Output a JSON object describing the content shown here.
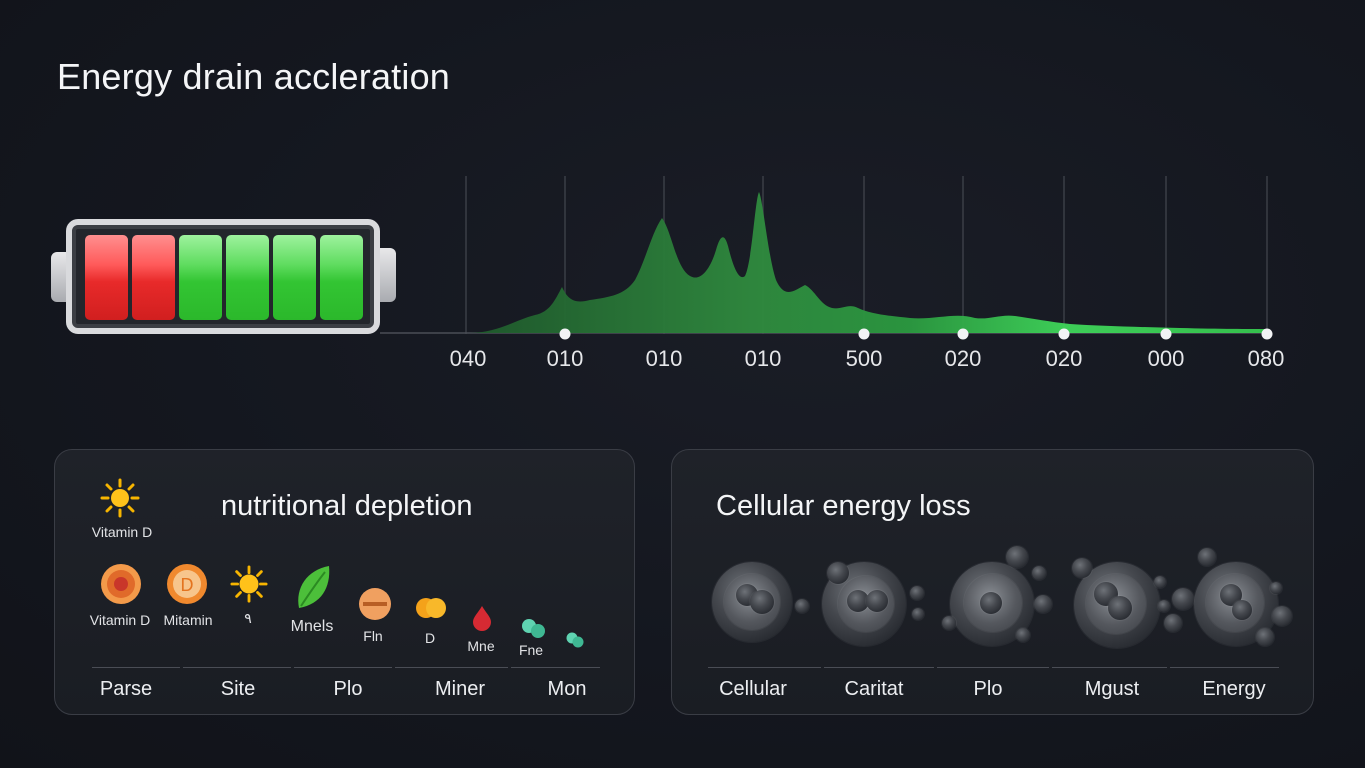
{
  "title": "Energy drain accleration",
  "chart_data": {
    "type": "area",
    "x_tick_labels": [
      "040",
      "010",
      "010",
      "010",
      "500",
      "020",
      "020",
      "000",
      "080"
    ],
    "color": "#3ddc56"
  },
  "battery": {
    "cells": [
      "red",
      "red",
      "green",
      "green",
      "green",
      "green"
    ],
    "colors": {
      "red": "#e82a2a",
      "green": "#33c533",
      "frame": "#d9dadd"
    }
  },
  "nutrition": {
    "title": "nutritional depletion",
    "header_icon_label": "Vitamin D",
    "items": [
      {
        "label": "Vitamin D",
        "icon": "virus-orb-icon"
      },
      {
        "label": "Mitamin",
        "icon": "vitamin-d-coin-icon"
      },
      {
        "label": "٩",
        "icon": "sun-icon"
      },
      {
        "label": "Mnels",
        "icon": "leaf-icon"
      },
      {
        "label": "Fln",
        "icon": "pill-icon"
      },
      {
        "label": "D",
        "icon": "capsule-pair-icon"
      },
      {
        "label": "Mne",
        "icon": "red-drop-icon"
      },
      {
        "label": "Fne",
        "icon": "teal-beads-icon"
      },
      {
        "label": "",
        "icon": "teal-beads-icon"
      }
    ],
    "tabs": [
      "Parse",
      "Site",
      "Plo",
      "Miner",
      "Mon"
    ]
  },
  "cellular": {
    "title": "Cellular energy loss",
    "tabs": [
      "Cellular",
      "Caritat",
      "Plo",
      "Mgust",
      "Energy"
    ]
  }
}
